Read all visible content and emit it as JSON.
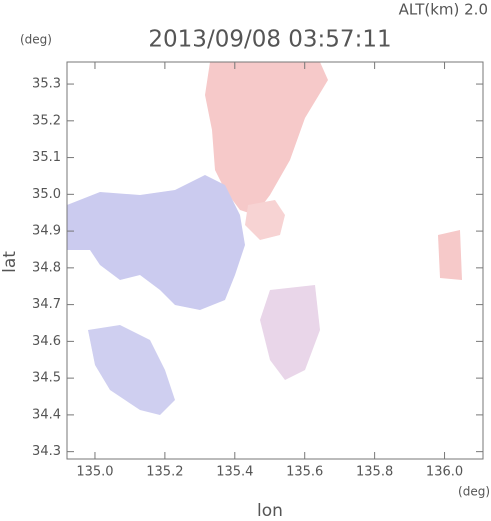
{
  "chart_data": {
    "type": "map",
    "title": "2013/09/08 03:57:11",
    "altitude_label": "ALT(km) 2.0",
    "y_unit": "(deg)",
    "x_unit": "(deg)",
    "ylabel": "lat",
    "xlabel": "lon",
    "xlim": [
      134.92,
      136.11
    ],
    "ylim": [
      34.28,
      35.36
    ],
    "xticks": [
      {
        "value": 135.0,
        "label": "135.0"
      },
      135.2,
      135.4,
      135.6,
      135.8,
      {
        "value": 136.0,
        "label": "136.0"
      }
    ],
    "yticks": [
      34.3,
      34.4,
      34.5,
      34.6,
      34.7,
      34.8,
      34.9,
      {
        "value": 35.0,
        "label": "35.0"
      },
      35.1,
      35.2,
      35.3
    ]
  }
}
